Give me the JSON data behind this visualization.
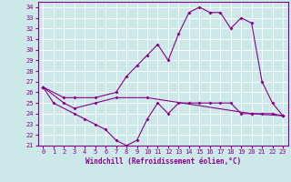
{
  "xlabel": "Windchill (Refroidissement éolien,°C)",
  "background_color": "#cce8e8",
  "grid_color": "#ffffff",
  "line_color": "#880088",
  "xlim": [
    -0.5,
    23.5
  ],
  "ylim": [
    21,
    34.5
  ],
  "xticks": [
    0,
    1,
    2,
    3,
    4,
    5,
    6,
    7,
    8,
    9,
    10,
    11,
    12,
    13,
    14,
    15,
    16,
    17,
    18,
    19,
    20,
    21,
    22,
    23
  ],
  "yticks": [
    21,
    22,
    23,
    24,
    25,
    26,
    27,
    28,
    29,
    30,
    31,
    32,
    33,
    34
  ],
  "line1_x": [
    0,
    2,
    3,
    5,
    7,
    10,
    20,
    23
  ],
  "line1_y": [
    26.5,
    25.0,
    24.5,
    25.0,
    25.5,
    25.5,
    24.0,
    23.8
  ],
  "line2_x": [
    0,
    1,
    3,
    4,
    5,
    6,
    7,
    8,
    9,
    10,
    11,
    12,
    13,
    14,
    15,
    16,
    17,
    18,
    19,
    20,
    21,
    22,
    23
  ],
  "line2_y": [
    26.5,
    25.0,
    24.0,
    23.5,
    23.0,
    22.5,
    21.5,
    21.0,
    21.5,
    23.5,
    25.0,
    24.0,
    25.0,
    25.0,
    25.0,
    25.0,
    25.0,
    25.0,
    24.0,
    24.0,
    24.0,
    24.0,
    23.8
  ],
  "line3_x": [
    0,
    2,
    3,
    5,
    7,
    8,
    9,
    10,
    11,
    12,
    13,
    14,
    15,
    16,
    17,
    18,
    19,
    20,
    21,
    22,
    23
  ],
  "line3_y": [
    26.5,
    25.5,
    25.5,
    25.5,
    26.0,
    27.5,
    28.5,
    29.5,
    30.5,
    29.0,
    31.5,
    33.5,
    34.0,
    33.5,
    33.5,
    32.0,
    33.0,
    32.5,
    27.0,
    25.0,
    23.8
  ]
}
